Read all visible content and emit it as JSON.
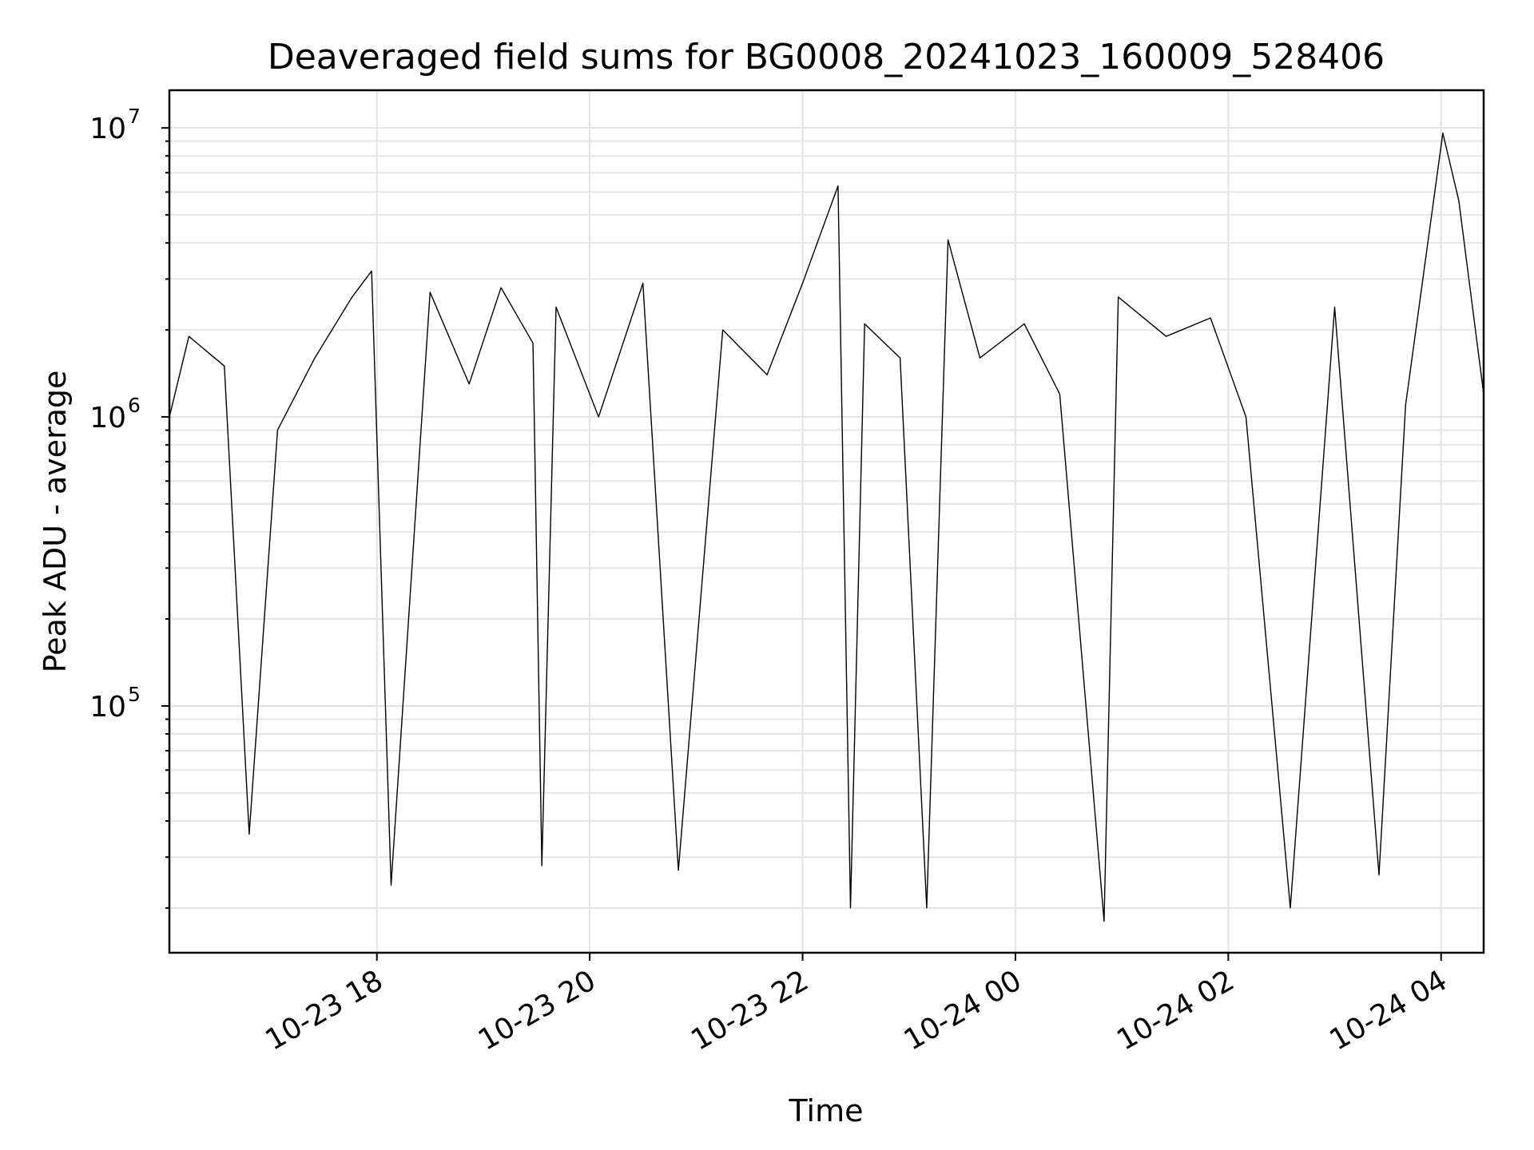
{
  "chart_data": {
    "type": "line",
    "title": "Deaveraged field sums for BG0008_20241023_160009_528406",
    "xlabel": "Time",
    "ylabel": "Peak ADU - average",
    "yscale": "log",
    "ylim": [
      14000,
      13500000
    ],
    "xlim": [
      "2024-10-23 16:03",
      "2024-10-24 04:24"
    ],
    "grid": true,
    "line_color": "#000000",
    "x_ticks": [
      {
        "value": "2024-10-23 18:00",
        "label": "10-23 18"
      },
      {
        "value": "2024-10-23 20:00",
        "label": "10-23 20"
      },
      {
        "value": "2024-10-23 22:00",
        "label": "10-23 22"
      },
      {
        "value": "2024-10-24 00:00",
        "label": "10-24 00"
      },
      {
        "value": "2024-10-24 02:00",
        "label": "10-24 02"
      },
      {
        "value": "2024-10-24 04:00",
        "label": "10-24 04"
      }
    ],
    "y_ticks": [
      {
        "value": 100000,
        "base": "10",
        "exp": "5"
      },
      {
        "value": 1000000,
        "base": "10",
        "exp": "6"
      },
      {
        "value": 10000000,
        "base": "10",
        "exp": "7"
      }
    ],
    "series": [
      {
        "x": [
          "2024-10-23 16:03",
          "2024-10-23 16:14",
          "2024-10-23 16:34",
          "2024-10-23 16:48",
          "2024-10-23 17:04",
          "2024-10-23 17:25",
          "2024-10-23 17:46",
          "2024-10-23 17:57",
          "2024-10-23 18:08",
          "2024-10-23 18:30",
          "2024-10-23 18:52",
          "2024-10-23 19:10",
          "2024-10-23 19:28",
          "2024-10-23 19:33",
          "2024-10-23 19:41",
          "2024-10-23 20:05",
          "2024-10-23 20:30",
          "2024-10-23 20:50",
          "2024-10-23 21:15",
          "2024-10-23 21:40",
          "2024-10-23 22:00",
          "2024-10-23 22:20",
          "2024-10-23 22:27",
          "2024-10-23 22:35",
          "2024-10-23 22:55",
          "2024-10-23 23:10",
          "2024-10-23 23:22",
          "2024-10-23 23:40",
          "2024-10-24 00:05",
          "2024-10-24 00:25",
          "2024-10-24 00:50",
          "2024-10-24 00:58",
          "2024-10-24 01:25",
          "2024-10-24 01:50",
          "2024-10-24 02:10",
          "2024-10-24 02:35",
          "2024-10-24 03:00",
          "2024-10-24 03:25",
          "2024-10-24 03:40",
          "2024-10-24 04:01",
          "2024-10-24 04:10",
          "2024-10-24 04:24"
        ],
        "y": [
          1000000,
          1900000,
          1500000,
          36000,
          900000,
          1600000,
          2600000,
          3200000,
          24000,
          2700000,
          1300000,
          2800000,
          1800000,
          28000,
          2400000,
          1000000,
          2900000,
          27000,
          2000000,
          1400000,
          2900000,
          6300000,
          20000,
          2100000,
          1600000,
          20000,
          4100000,
          1600000,
          2100000,
          1200000,
          18000,
          2600000,
          1900000,
          2200000,
          1000000,
          20000,
          2400000,
          26000,
          1100000,
          9600000,
          5600000,
          1200000
        ]
      }
    ]
  }
}
